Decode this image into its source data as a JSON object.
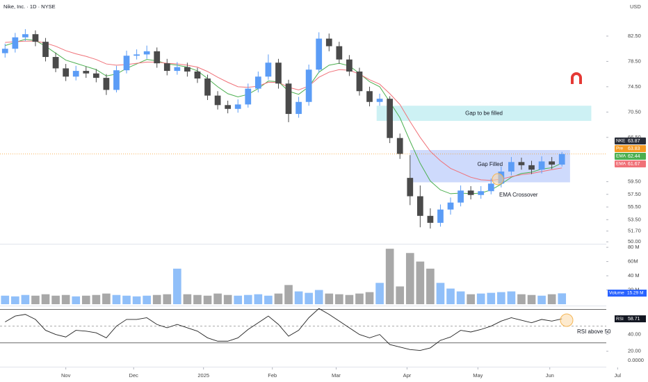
{
  "chart_data": [
    {
      "type": "candlestick",
      "title": "Nike, Inc. · 1D · NYSE",
      "currency": "USD",
      "xlim": [
        -0.5,
        63.5
      ],
      "xticks": [
        {
          "value": 6,
          "label": "Nov"
        },
        {
          "value": 12.7,
          "label": "Dec"
        },
        {
          "value": 19.6,
          "label": "2025"
        },
        {
          "value": 26.4,
          "label": "Feb"
        },
        {
          "value": 32.7,
          "label": "Mar"
        },
        {
          "value": 39.7,
          "label": "Apr"
        },
        {
          "value": 46.7,
          "label": "May"
        },
        {
          "value": 53.8,
          "label": "Jun"
        },
        {
          "value": 60.5,
          "label": "Jul"
        }
      ],
      "ylim": [
        49.8,
        88.2
      ],
      "yticks": [
        {
          "value": 82.5,
          "label": "82.50"
        },
        {
          "value": 78.5,
          "label": "78.50"
        },
        {
          "value": 74.5,
          "label": "74.50"
        },
        {
          "value": 70.5,
          "label": "70.50"
        },
        {
          "value": 66.5,
          "label": "66.50"
        },
        {
          "value": 59.5,
          "label": "59.50"
        },
        {
          "value": 57.5,
          "label": "57.50"
        },
        {
          "value": 55.5,
          "label": "55.50"
        },
        {
          "value": 53.5,
          "label": "53.50"
        },
        {
          "value": 51.7,
          "label": "51.70"
        },
        {
          "value": 50,
          "label": "50.00"
        }
      ],
      "up_color": "#5b9cf6",
      "down_color": "#4a4a4a",
      "open": [
        79.8,
        80.5,
        82.3,
        82.8,
        81.6,
        79.2,
        77.4,
        76.1,
        77.0,
        76.6,
        75.9,
        74.0,
        77.1,
        79.4,
        79.6,
        80.1,
        78.2,
        77.0,
        77.6,
        76.9,
        75.8,
        73.1,
        71.6,
        71.0,
        71.7,
        74.2,
        76.1,
        78.3,
        75.0,
        70.2,
        72.1,
        77.2,
        82.1,
        80.9,
        78.8,
        76.9,
        73.8,
        72.1,
        72.6,
        66.4,
        60.1,
        57.2,
        54.1,
        53.0,
        55.1,
        56.2,
        58.1,
        57.4,
        58.0,
        59.2,
        61.1,
        62.6,
        62.1,
        61.4,
        62.7,
        62.2
      ],
      "high": [
        81.3,
        83.0,
        83.6,
        83.4,
        82.2,
        79.9,
        78.1,
        77.8,
        77.7,
        77.3,
        76.5,
        77.8,
        80.2,
        80.4,
        81.0,
        80.7,
        78.9,
        78.4,
        78.3,
        77.5,
        76.4,
        73.8,
        72.3,
        72.5,
        75.0,
        76.9,
        79.6,
        78.9,
        75.6,
        72.9,
        78.0,
        83.1,
        82.9,
        81.6,
        79.5,
        77.5,
        74.5,
        73.4,
        73.0,
        67.1,
        63.7,
        58.9,
        55.3,
        55.9,
        57.0,
        58.9,
        58.8,
        58.8,
        60.0,
        61.9,
        63.4,
        63.3,
        62.8,
        63.5,
        63.4,
        64.2
      ],
      "low": [
        79.1,
        79.9,
        81.7,
        80.9,
        78.5,
        76.8,
        75.4,
        75.5,
        75.9,
        75.2,
        73.2,
        73.6,
        76.6,
        78.8,
        78.9,
        77.5,
        76.3,
        76.4,
        76.1,
        75.1,
        72.4,
        70.9,
        70.3,
        70.4,
        71.2,
        73.6,
        75.6,
        74.2,
        68.9,
        69.6,
        71.5,
        76.7,
        80.1,
        78.1,
        76.2,
        73.1,
        71.4,
        71.5,
        65.6,
        63.1,
        55.8,
        52.3,
        52.1,
        52.4,
        54.3,
        55.6,
        56.7,
        56.8,
        57.5,
        58.6,
        60.5,
        61.4,
        60.7,
        60.8,
        61.5,
        61.9
      ],
      "close": [
        80.5,
        82.3,
        82.8,
        81.6,
        79.2,
        77.4,
        76.1,
        77.0,
        76.6,
        75.9,
        74.0,
        77.1,
        79.4,
        79.6,
        80.1,
        78.2,
        77.0,
        77.6,
        76.9,
        75.8,
        73.1,
        71.6,
        71.0,
        71.7,
        74.2,
        76.1,
        78.3,
        75.0,
        70.2,
        72.1,
        77.2,
        82.1,
        80.9,
        78.8,
        76.9,
        73.8,
        72.1,
        72.6,
        66.4,
        63.9,
        57.2,
        54.1,
        53.0,
        55.1,
        56.2,
        58.1,
        57.4,
        58.0,
        59.2,
        61.1,
        62.6,
        62.1,
        61.4,
        62.7,
        62.2,
        63.87
      ],
      "series": [
        {
          "name": "EMA",
          "color": "#4caf50",
          "values": [
            81.0,
            81.5,
            82.0,
            81.8,
            80.9,
            79.8,
            78.7,
            78.2,
            77.7,
            77.2,
            76.2,
            76.5,
            77.4,
            78.1,
            78.8,
            78.6,
            78.1,
            77.9,
            77.6,
            77.0,
            75.8,
            74.5,
            73.4,
            72.9,
            73.3,
            74.2,
            75.4,
            75.3,
            73.8,
            73.3,
            74.5,
            76.8,
            77.9,
            78.2,
            77.8,
            76.6,
            75.3,
            74.5,
            72.1,
            69.6,
            65.9,
            62.4,
            59.6,
            58.2,
            57.6,
            57.7,
            57.6,
            57.7,
            58.2,
            59.1,
            60.2,
            60.8,
            61.0,
            61.5,
            61.7,
            62.44
          ]
        },
        {
          "name": "EMA",
          "color": "#f07178",
          "values": [
            81.5,
            81.6,
            81.7,
            81.7,
            81.4,
            80.9,
            80.2,
            79.7,
            79.3,
            78.8,
            78.1,
            77.9,
            78.0,
            78.2,
            78.4,
            78.4,
            78.2,
            78.1,
            77.9,
            77.6,
            76.9,
            76.0,
            75.2,
            74.5,
            74.4,
            74.6,
            75.2,
            75.2,
            74.4,
            74.0,
            74.6,
            76.0,
            76.8,
            77.2,
            77.1,
            76.5,
            75.6,
            74.9,
            73.4,
            71.7,
            69.0,
            66.5,
            64.3,
            62.8,
            61.6,
            60.9,
            60.2,
            59.8,
            59.7,
            59.9,
            60.3,
            60.6,
            60.8,
            61.1,
            61.4,
            61.67
          ]
        }
      ],
      "price_tags": [
        {
          "name": "NKE",
          "value": 63.87,
          "color": "#2a2e39"
        },
        {
          "name": "Pre",
          "value": 63.83,
          "color": "#f59a23"
        },
        {
          "name": "EMA",
          "value": 62.44,
          "color": "#4caf50"
        },
        {
          "name": "EMA",
          "value": 61.67,
          "color": "#f07178"
        }
      ],
      "zones": [
        {
          "label": "Gap to be filled",
          "top": 71.5,
          "bottom": 69.1,
          "start": 36.7,
          "end": 57.9,
          "color": "#c4eef2"
        },
        {
          "label": "Gap Filled",
          "top": 64.5,
          "bottom": 59.4,
          "start": 40,
          "end": 55.8,
          "color": "#c6d4fb"
        }
      ],
      "annotation": "EMA Crossover"
    },
    {
      "type": "bar",
      "name": "Volume",
      "last_label": "15.29 M",
      "ylim": [
        0,
        84
      ],
      "yticks": [
        {
          "value": 80,
          "label": "80 M"
        },
        {
          "value": 60,
          "label": "60M"
        },
        {
          "value": 40,
          "label": "40 M"
        },
        {
          "value": 20,
          "label": "20 M"
        }
      ],
      "up_color": "#90bff9",
      "down_color": "#a8a8a8",
      "values": [
        12,
        11,
        13,
        12,
        14,
        12,
        13,
        11,
        12,
        13,
        15,
        13,
        12,
        11,
        12,
        13,
        14,
        50,
        14,
        13,
        12,
        15,
        13,
        12,
        13,
        14,
        12,
        15,
        27,
        18,
        16,
        20,
        15,
        14,
        13,
        15,
        17,
        30,
        78,
        25,
        72,
        60,
        50,
        30,
        22,
        18,
        14,
        15,
        16,
        17,
        18,
        14,
        13,
        12,
        14,
        15.29
      ]
    },
    {
      "type": "line",
      "name": "RSI",
      "color": "#222222",
      "annotation": "RSI above 50",
      "corner_label": "0.0000",
      "ylim": [
        9,
        72
      ],
      "yticks": [
        {
          "value": 40,
          "label": "40.00"
        },
        {
          "value": 20,
          "label": "20.00"
        }
      ],
      "levels": [
        70,
        50,
        30
      ],
      "values": [
        55,
        62,
        64,
        58,
        45,
        40,
        37,
        45,
        44,
        42,
        36,
        50,
        58,
        58,
        60,
        52,
        48,
        52,
        48,
        44,
        36,
        32,
        32,
        36,
        46,
        54,
        62,
        52,
        38,
        45,
        60,
        71,
        64,
        56,
        48,
        40,
        36,
        40,
        28,
        25,
        22,
        21,
        24,
        33,
        37,
        45,
        43,
        46,
        50,
        56,
        60,
        57,
        54,
        58,
        56,
        58.71
      ]
    }
  ]
}
